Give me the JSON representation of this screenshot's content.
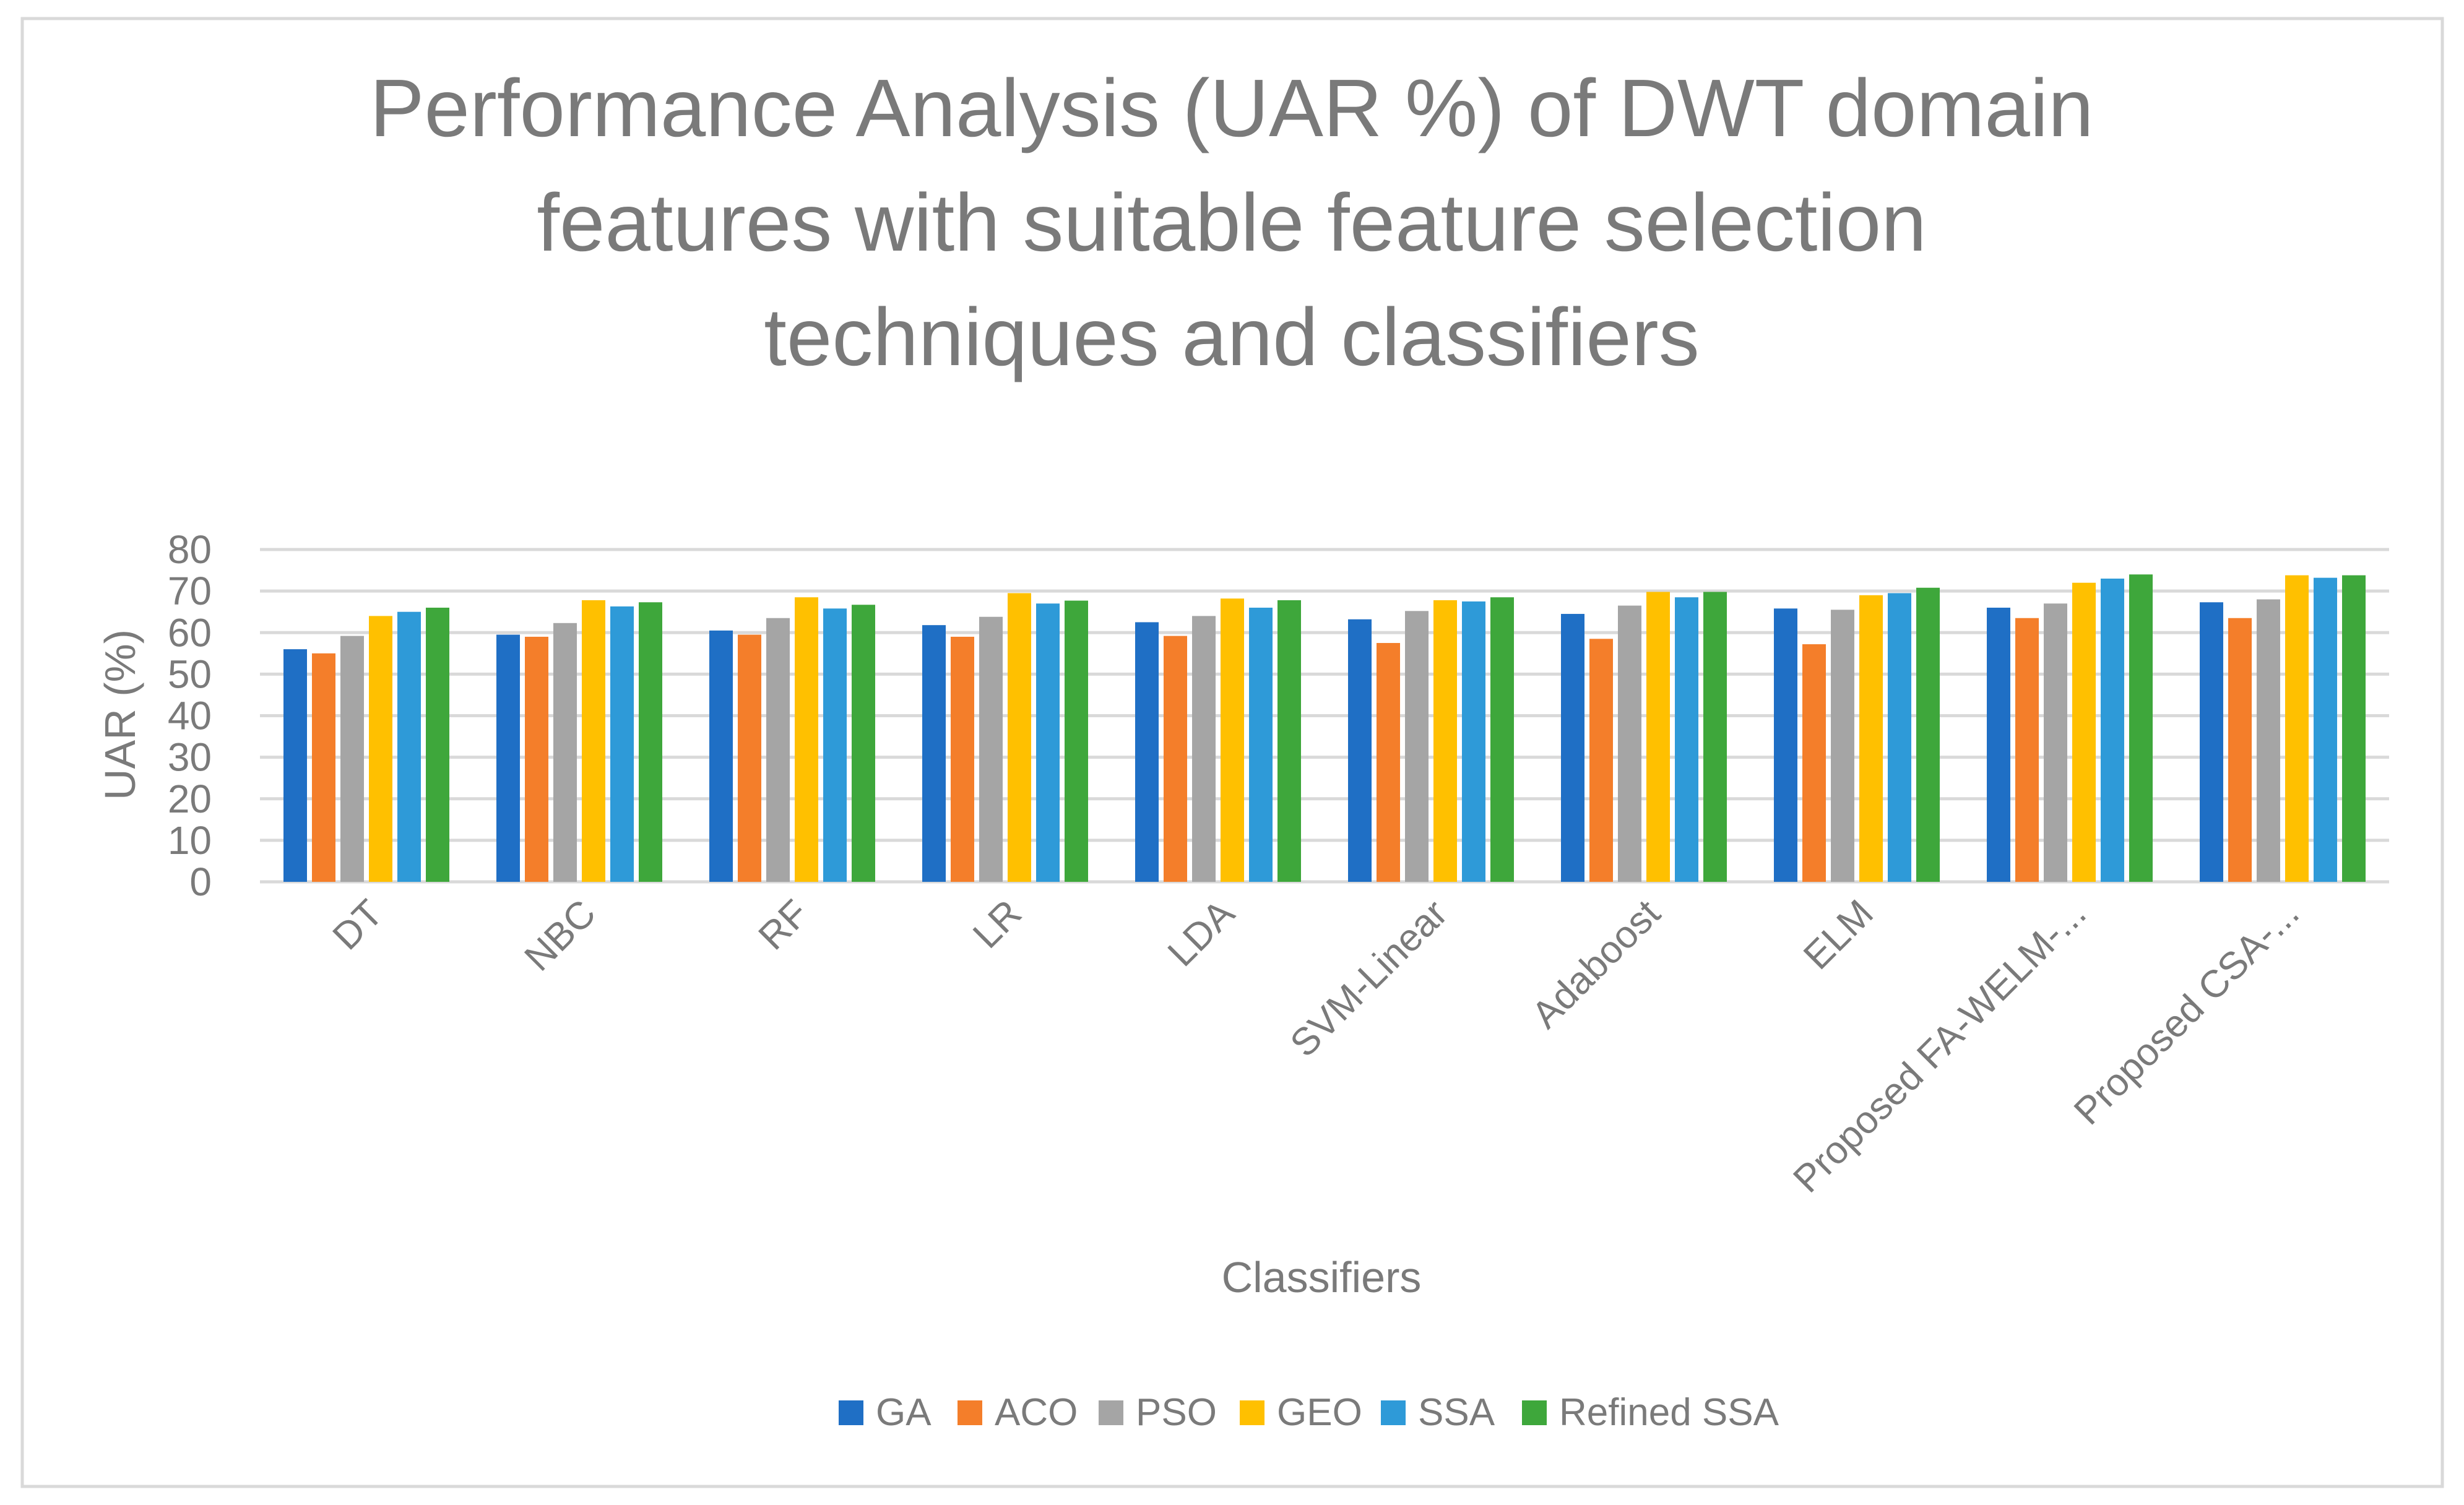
{
  "chart_data": {
    "type": "bar",
    "title_lines": [
      "Performance Analysis (UAR %) of DWT domain",
      "features with suitable feature selection",
      "techniques and classifiers"
    ],
    "xlabel": "Classifiers",
    "ylabel": "UAR (%)",
    "ylim": [
      0,
      80
    ],
    "yticks": [
      0,
      10,
      20,
      30,
      40,
      50,
      60,
      70,
      80
    ],
    "grid": true,
    "legend_position": "bottom",
    "categories": [
      "DT",
      "NBC",
      "RF",
      "LR",
      "LDA",
      "SVM-Linear",
      "Adaboost",
      "ELM",
      "Proposed FA-WELM-...",
      "Proposed CSA-..."
    ],
    "series": [
      {
        "name": "GA",
        "color": "#1f6fc5",
        "values": [
          56,
          59.5,
          60.5,
          61.8,
          62.5,
          63.2,
          64.5,
          65.8,
          66,
          67.3
        ]
      },
      {
        "name": "ACO",
        "color": "#f47e2a",
        "values": [
          55,
          59,
          59.5,
          59,
          59.2,
          57.5,
          58.5,
          57.2,
          63.5,
          63.5
        ]
      },
      {
        "name": "PSO",
        "color": "#a5a5a5",
        "values": [
          59.2,
          62.3,
          63.5,
          63.8,
          64,
          65.2,
          66.5,
          65.5,
          67,
          68
        ]
      },
      {
        "name": "GEO",
        "color": "#ffc000",
        "values": [
          64,
          67.8,
          68.5,
          69.5,
          68.2,
          67.8,
          69.8,
          69,
          72,
          73.8
        ]
      },
      {
        "name": "SSA",
        "color": "#2e9ad8",
        "values": [
          65,
          66.3,
          65.8,
          67,
          66,
          67.5,
          68.5,
          69.5,
          73,
          73.2
        ]
      },
      {
        "name": "Refined SSA",
        "color": "#3ea73b",
        "values": [
          66,
          67.3,
          66.7,
          67.7,
          67.8,
          68.5,
          69.8,
          70.8,
          74,
          73.8
        ]
      }
    ]
  }
}
